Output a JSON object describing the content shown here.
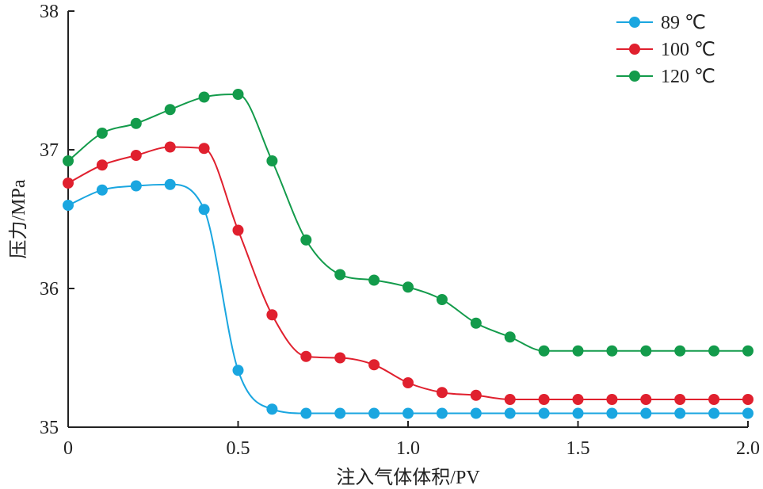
{
  "chart_data": {
    "type": "line",
    "xlabel": "注入气体体积/PV",
    "ylabel": "压力/MPa",
    "xlim": [
      0,
      2.0
    ],
    "ylim": [
      35,
      38
    ],
    "xticks": [
      0,
      0.5,
      1.0,
      1.5,
      2.0
    ],
    "xtick_labels": [
      "0",
      "0.5",
      "1.0",
      "1.5",
      "2.0"
    ],
    "yticks": [
      35,
      36,
      37,
      38
    ],
    "ytick_labels": [
      "35",
      "36",
      "37",
      "38"
    ],
    "grid": false,
    "legend_position": "top-right",
    "x": [
      0,
      0.1,
      0.2,
      0.3,
      0.4,
      0.5,
      0.6,
      0.7,
      0.8,
      0.9,
      1.0,
      1.1,
      1.2,
      1.3,
      1.4,
      1.5,
      1.6,
      1.7,
      1.8,
      1.9,
      2.0
    ],
    "series": [
      {
        "name": "89 ℃",
        "color": "#1aa6e0",
        "values": [
          36.6,
          36.71,
          36.74,
          36.75,
          36.57,
          35.41,
          35.13,
          35.1,
          35.1,
          35.1,
          35.1,
          35.1,
          35.1,
          35.1,
          35.1,
          35.1,
          35.1,
          35.1,
          35.1,
          35.1,
          35.1
        ]
      },
      {
        "name": "100 ℃",
        "color": "#e0202e",
        "values": [
          36.76,
          36.89,
          36.96,
          37.02,
          37.01,
          36.42,
          35.81,
          35.51,
          35.5,
          35.45,
          35.32,
          35.25,
          35.23,
          35.2,
          35.2,
          35.2,
          35.2,
          35.2,
          35.2,
          35.2,
          35.2
        ]
      },
      {
        "name": "120 ℃",
        "color": "#139b4b",
        "values": [
          36.92,
          37.12,
          37.19,
          37.29,
          37.38,
          37.4,
          36.92,
          36.35,
          36.1,
          36.06,
          36.01,
          35.92,
          35.75,
          35.65,
          35.55,
          35.55,
          35.55,
          35.55,
          35.55,
          35.55,
          35.55
        ]
      }
    ]
  }
}
